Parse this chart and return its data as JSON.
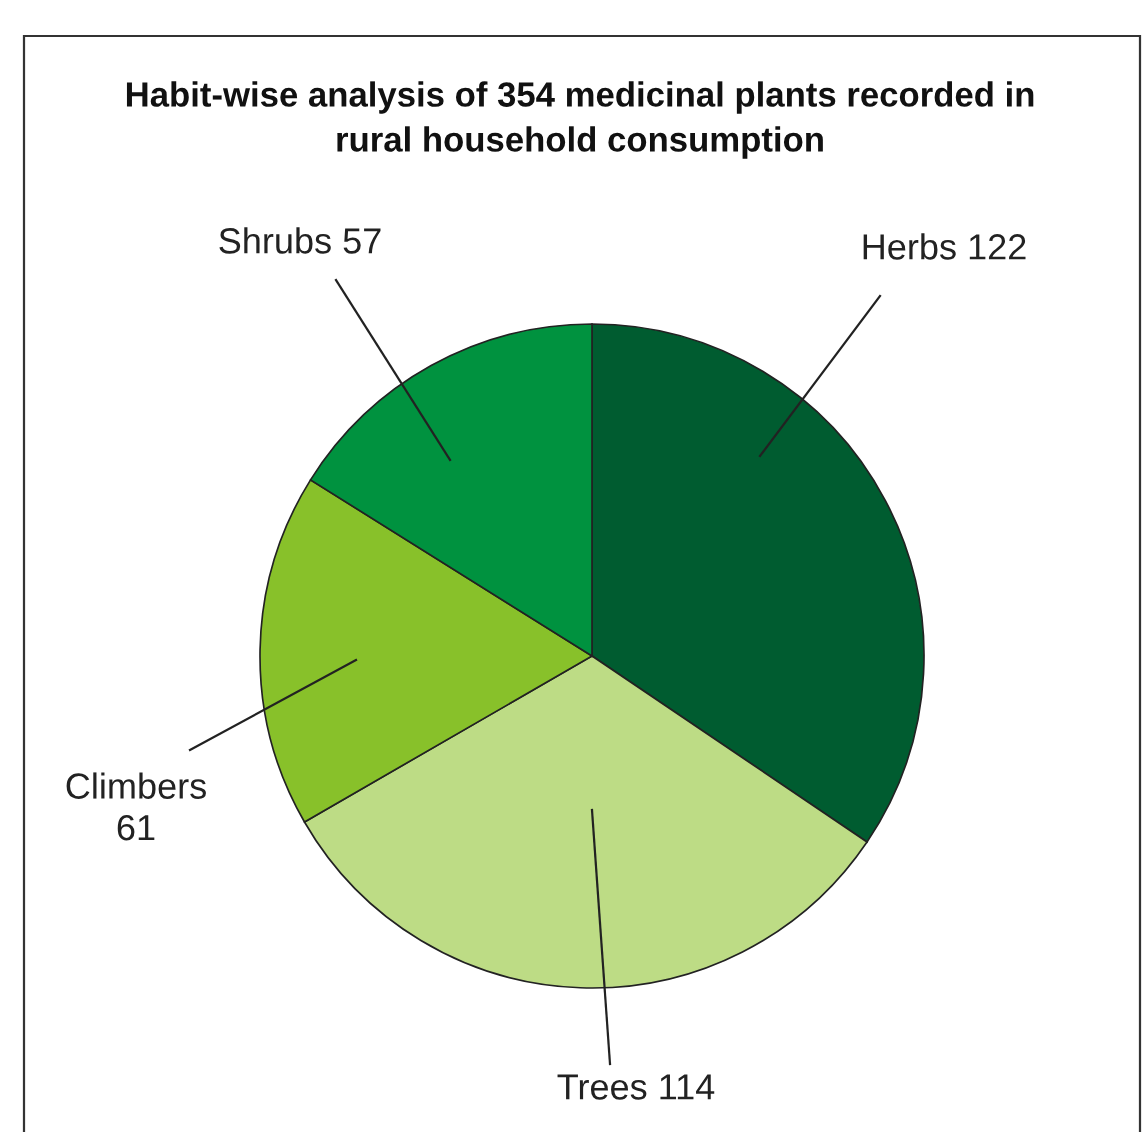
{
  "chart_data": {
    "type": "pie",
    "title": "Habit-wise analysis of 354 medicinal plants recorded in\nrural household consumption",
    "categories": [
      "Herbs 122",
      "Trees 114",
      "Climbers 61",
      "Shrubs 57"
    ],
    "values": [
      122,
      114,
      61,
      57
    ],
    "colors": [
      "#005c30",
      "#bddc85",
      "#88c12a",
      "#00923f"
    ]
  }
}
